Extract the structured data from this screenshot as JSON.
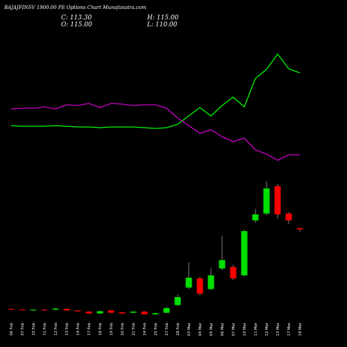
{
  "chart_data": {
    "type": "candlestick",
    "title": "BAJAJFINSV 1900.00 PE Options Chart Munafasutra.com",
    "annotations": [
      "C: 113.30",
      "H: 115.00",
      "O: 115.00",
      "L: 110.00"
    ],
    "categories": [
      "06 Feb",
      "07 Feb",
      "10 Feb",
      "11 Feb",
      "12 Feb",
      "13 Feb",
      "14 Feb",
      "17 Feb",
      "18 Feb",
      "19 Feb",
      "20 Feb",
      "21 Feb",
      "24 Feb",
      "25 Feb",
      "27 Feb",
      "28 Feb",
      "03 Mar",
      "04 Mar",
      "05 Mar",
      "06 Mar",
      "07 Mar",
      "10 Mar",
      "11 Mar",
      "12 Mar",
      "13 Mar",
      "17 Mar",
      "18 Mar"
    ],
    "open": [
      9,
      8.2,
      7,
      8,
      8,
      9,
      7,
      5.5,
      3,
      7,
      4.5,
      4,
      5.5,
      2,
      4,
      14,
      37,
      49,
      35,
      62,
      64,
      53,
      125,
      134,
      170,
      134,
      115
    ],
    "high": [
      9.5,
      8.5,
      8.5,
      8.5,
      10,
      9.5,
      7.5,
      6,
      6.5,
      7.5,
      5,
      6,
      6,
      4,
      12,
      28,
      70,
      51,
      62,
      105,
      67,
      113,
      140,
      177,
      173,
      136,
      115
    ],
    "low": [
      7.5,
      7,
      6,
      6.5,
      7.5,
      6.5,
      5.5,
      2.5,
      2.5,
      3.5,
      2.5,
      3.5,
      1.5,
      1,
      3.5,
      13,
      35,
      27,
      34,
      60,
      47,
      52,
      122,
      132,
      127,
      120,
      110
    ],
    "close": [
      8,
      7.5,
      8,
      7,
      9.5,
      7,
      5.8,
      3,
      6,
      4,
      3,
      5.5,
      2,
      3.5,
      10,
      24.5,
      50,
      29,
      53,
      73,
      49,
      111,
      133,
      167,
      133,
      125,
      113.3
    ],
    "up_color": "#00e000",
    "down_color": "#ff0000",
    "ylim": [
      0,
      182
    ],
    "series": [
      {
        "name": "Green line",
        "color": "#00ff00",
        "axis": "y2",
        "values": [
          69,
          68,
          68,
          68,
          69,
          68,
          67,
          67,
          66,
          67,
          67,
          67,
          66,
          65,
          66,
          71,
          83,
          95,
          83,
          98,
          110,
          96,
          137,
          150,
          172,
          151,
          145
        ]
      },
      {
        "name": "Magenta line",
        "color": "#cc00cc",
        "axis": "y2",
        "values": [
          93,
          94,
          94,
          96,
          93,
          99,
          98,
          101,
          95,
          101,
          100,
          98,
          99,
          99,
          94,
          80,
          69,
          58,
          63,
          53,
          46,
          51,
          34,
          28,
          19,
          27,
          27
        ]
      }
    ],
    "y2lim": [
      0,
      250
    ]
  }
}
